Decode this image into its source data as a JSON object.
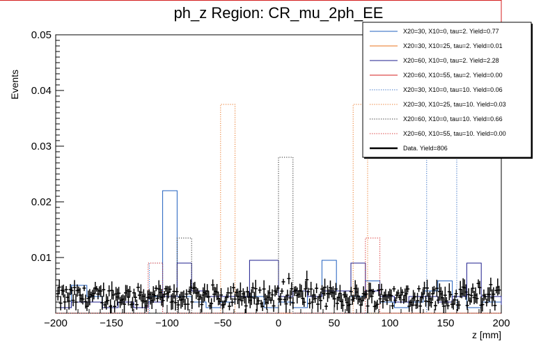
{
  "chart_data": {
    "type": "histogram",
    "title": "ph_z Region: CR_mu_2ph_EE",
    "xlabel": "z [mm]",
    "ylabel": "Events",
    "xlim": [
      -200,
      200
    ],
    "ylim": [
      0,
      0.05
    ],
    "x_ticks": [
      -200,
      -150,
      -100,
      -50,
      0,
      50,
      100,
      150,
      200
    ],
    "y_ticks": [
      0.01,
      0.02,
      0.03,
      0.04,
      0.05
    ],
    "y_tick_labels": [
      "0.01",
      "0.02",
      "0.03",
      "0.04",
      "0.05"
    ],
    "legend_position": "top-right",
    "series": [
      {
        "name": "X20=30, X10=0, tau=2. Yield=0.77",
        "color": "#1f5fbf",
        "style": "solid",
        "edges": [
          -200,
          -186,
          -172,
          -158,
          -144,
          -130,
          -117,
          -104,
          -91,
          -78,
          -65,
          -52,
          -39,
          -26,
          -13,
          0,
          13,
          26,
          39,
          52,
          65,
          78,
          91,
          104,
          117,
          130,
          143,
          156,
          169,
          182,
          200
        ],
        "values": [
          0.001,
          0.005,
          0.003,
          0.001,
          0.002,
          0.001,
          0.003,
          0.022,
          0.003,
          0.002,
          0.001,
          0.002,
          0.003,
          0.003,
          0.001,
          0.002,
          0.001,
          0.003,
          0.0095,
          0.004,
          0.003,
          0.0058,
          0.002,
          0.001,
          0.002,
          0.004,
          0.0058,
          0.003,
          0.001,
          0.002
        ]
      },
      {
        "name": "X20=30, X10=25, tau=2. Yield=0.01",
        "color": "#e8711b",
        "style": "solid",
        "edges": [
          -200,
          200
        ],
        "values": [
          0.0
        ]
      },
      {
        "name": "X20=60, X10=0, tau=2. Yield=2.28",
        "color": "#1c1c8c",
        "style": "solid",
        "edges": [
          -200,
          -186,
          -172,
          -158,
          -144,
          -130,
          -117,
          -104,
          -91,
          -78,
          -65,
          -52,
          -39,
          -26,
          -13,
          0,
          13,
          26,
          39,
          52,
          65,
          78,
          91,
          104,
          117,
          130,
          143,
          156,
          169,
          182,
          200
        ],
        "values": [
          0.001,
          0.002,
          0.002,
          0.001,
          0.002,
          0.001,
          0.002,
          0.003,
          0.009,
          0.004,
          0.003,
          0.003,
          0.003,
          0.0095,
          0.0095,
          0.003,
          0.004,
          0.003,
          0.004,
          0.004,
          0.009,
          0.004,
          0.003,
          0.002,
          0.003,
          0.003,
          0.002,
          0.003,
          0.009,
          0.003
        ]
      },
      {
        "name": "X20=60, X10=55, tau=2. Yield=0.00",
        "color": "#d41c1c",
        "style": "solid",
        "edges": [
          -200,
          200
        ],
        "values": [
          0.0
        ]
      },
      {
        "name": "X20=30, X10=0, tau=10. Yield=0.06",
        "color": "#1f5fbf",
        "style": "dotted",
        "edges": [
          -200,
          -116,
          -104,
          -91,
          120,
          133,
          146,
          160,
          200
        ],
        "values": [
          0.0,
          0.009,
          0.0,
          0.0,
          0.0,
          0.028,
          0.028,
          0.0
        ]
      },
      {
        "name": "X20=30, X10=25, tau=10. Yield=0.03",
        "color": "#e8711b",
        "style": "dotted",
        "edges": [
          -200,
          -52,
          -39,
          67,
          80,
          200
        ],
        "values": [
          0.0,
          0.0375,
          0.0,
          0.0375,
          0.0
        ]
      },
      {
        "name": "X20=60, X10=0, tau=10. Yield=0.66",
        "color": "#222222",
        "style": "dotted",
        "edges": [
          -200,
          -91,
          -78,
          0,
          13,
          200
        ],
        "values": [
          0.0,
          0.0135,
          0.0,
          0.028,
          0.0
        ]
      },
      {
        "name": "X20=60, X10=55, tau=10. Yield=0.00",
        "color": "#d41c1c",
        "style": "dotted",
        "edges": [
          -200,
          -117,
          -104,
          78,
          91,
          200
        ],
        "values": [
          0.0,
          0.009,
          0.0,
          0.0135,
          0.0
        ]
      },
      {
        "name": "Data. Yield=806",
        "color": "#000000",
        "style": "points",
        "points_count": 320,
        "points_x_range": [
          -198,
          198
        ],
        "points_y_range": [
          0.0005,
          0.007
        ]
      }
    ]
  }
}
